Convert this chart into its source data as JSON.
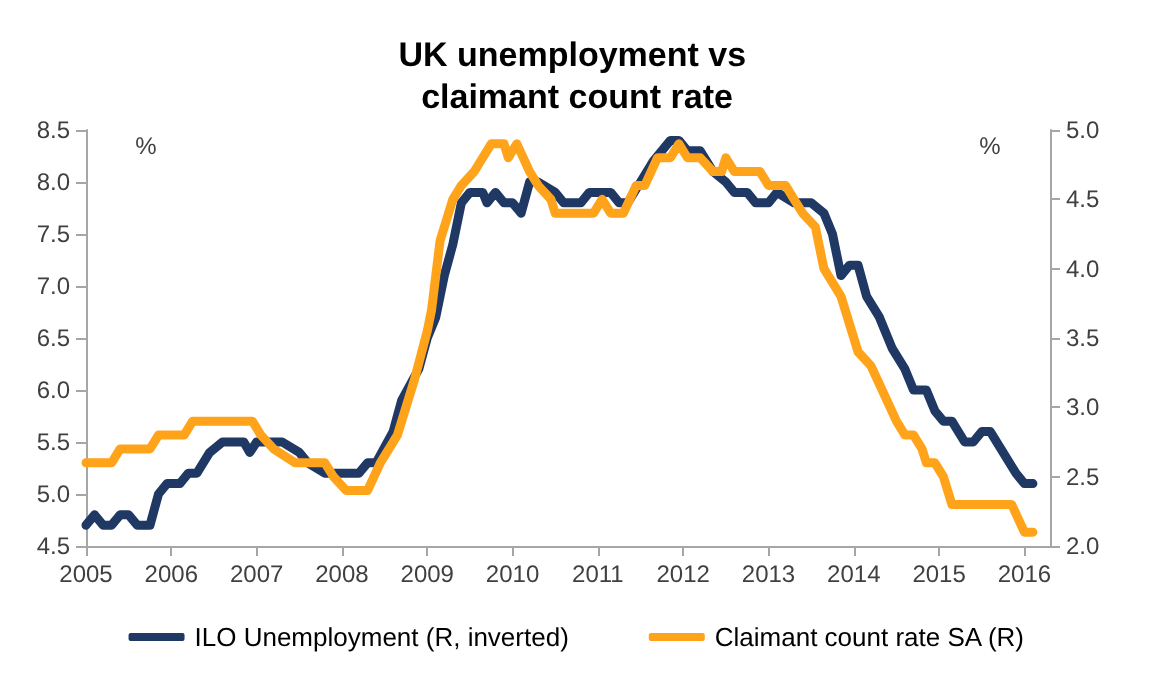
{
  "chart_data": {
    "type": "line",
    "title": "UK unemployment vs claimant count rate",
    "ylabel": "%",
    "y2label": "%",
    "xlim": [
      2005,
      2016.3
    ],
    "xticks": [
      2005,
      2006,
      2007,
      2008,
      2009,
      2010,
      2011,
      2012,
      2013,
      2014,
      2015,
      2016
    ],
    "ylim": [
      4.5,
      8.5
    ],
    "yticks": [
      4.5,
      {
        "value": 5,
        "label": "5.0"
      },
      5.5,
      {
        "value": 6,
        "label": "6.0"
      },
      6.5,
      {
        "value": 7,
        "label": "7.0"
      },
      7.5,
      {
        "value": 8,
        "label": "8.0"
      },
      8.5
    ],
    "y2lim": [
      2.0,
      5.0
    ],
    "y2ticks": [
      {
        "value": 2,
        "label": "2.0"
      },
      2.5,
      {
        "value": 3,
        "label": "3.0"
      },
      3.5,
      {
        "value": 4,
        "label": "4.0"
      },
      4.5,
      {
        "value": 5,
        "label": "5.0"
      }
    ],
    "grid": false,
    "legend": "bottom",
    "marker": "none",
    "line_style": "solid",
    "series": [
      {
        "name": "ILO Unemployment (R, inverted)",
        "color": "#1f3864",
        "x": [
          2005.0,
          2005.1,
          2005.2,
          2005.3,
          2005.4,
          2005.5,
          2005.6,
          2005.75,
          2005.85,
          2005.95,
          2006.1,
          2006.2,
          2006.3,
          2006.45,
          2006.6,
          2006.85,
          2006.92,
          2007.0,
          2007.3,
          2007.5,
          2007.6,
          2007.8,
          2008.2,
          2008.3,
          2008.4,
          2008.6,
          2008.7,
          2008.9,
          2009.0,
          2009.1,
          2009.2,
          2009.3,
          2009.4,
          2009.5,
          2009.65,
          2009.7,
          2009.8,
          2009.9,
          2010.0,
          2010.1,
          2010.2,
          2010.3,
          2010.5,
          2010.6,
          2010.8,
          2010.9,
          2011.0,
          2011.15,
          2011.25,
          2011.35,
          2011.5,
          2011.65,
          2011.85,
          2011.95,
          2012.05,
          2012.2,
          2012.35,
          2012.5,
          2012.6,
          2012.75,
          2012.85,
          2013.0,
          2013.1,
          2013.3,
          2013.5,
          2013.65,
          2013.75,
          2013.85,
          2013.95,
          2014.05,
          2014.15,
          2014.3,
          2014.45,
          2014.6,
          2014.7,
          2014.85,
          2014.95,
          2015.05,
          2015.15,
          2015.3,
          2015.4,
          2015.5,
          2015.6,
          2015.75,
          2015.9,
          2016.0,
          2016.1
        ],
        "values": [
          4.7,
          4.8,
          4.7,
          4.7,
          4.8,
          4.8,
          4.7,
          4.7,
          5.0,
          5.1,
          5.1,
          5.2,
          5.2,
          5.4,
          5.5,
          5.5,
          5.4,
          5.5,
          5.5,
          5.4,
          5.3,
          5.2,
          5.2,
          5.3,
          5.3,
          5.6,
          5.9,
          6.2,
          6.5,
          6.7,
          7.1,
          7.4,
          7.8,
          7.9,
          7.9,
          7.8,
          7.9,
          7.8,
          7.8,
          7.7,
          8.0,
          8.0,
          7.9,
          7.8,
          7.8,
          7.9,
          7.9,
          7.9,
          7.8,
          7.8,
          8.0,
          8.2,
          8.4,
          8.4,
          8.3,
          8.3,
          8.1,
          8.0,
          7.9,
          7.9,
          7.8,
          7.8,
          7.9,
          7.8,
          7.8,
          7.7,
          7.5,
          7.1,
          7.2,
          7.2,
          6.9,
          6.7,
          6.4,
          6.2,
          6.0,
          6.0,
          5.8,
          5.7,
          5.7,
          5.5,
          5.5,
          5.6,
          5.6,
          5.4,
          5.2,
          5.1,
          5.1
        ]
      },
      {
        "name": "Claimant count rate SA (R)",
        "color": "#ffa31a",
        "axis": "y2",
        "x": [
          2005.0,
          2005.3,
          2005.4,
          2005.75,
          2005.85,
          2006.15,
          2006.25,
          2006.95,
          2007.05,
          2007.2,
          2007.45,
          2007.8,
          2007.9,
          2008.05,
          2008.3,
          2008.45,
          2008.65,
          2008.85,
          2009.0,
          2009.05,
          2009.15,
          2009.3,
          2009.4,
          2009.55,
          2009.65,
          2009.75,
          2009.9,
          2009.95,
          2010.05,
          2010.2,
          2010.3,
          2010.45,
          2010.5,
          2010.95,
          2011.05,
          2011.15,
          2011.3,
          2011.45,
          2011.55,
          2011.7,
          2011.85,
          2011.95,
          2012.05,
          2012.2,
          2012.35,
          2012.45,
          2012.5,
          2012.6,
          2012.9,
          2013.0,
          2013.2,
          2013.3,
          2013.4,
          2013.55,
          2013.65,
          2013.85,
          2013.95,
          2014.05,
          2014.2,
          2014.35,
          2014.5,
          2014.6,
          2014.7,
          2014.8,
          2014.85,
          2014.95,
          2015.05,
          2015.15,
          2015.85,
          2016.0,
          2016.1
        ],
        "values": [
          2.6,
          2.6,
          2.7,
          2.7,
          2.8,
          2.8,
          2.9,
          2.9,
          2.8,
          2.7,
          2.6,
          2.6,
          2.5,
          2.4,
          2.4,
          2.6,
          2.8,
          3.2,
          3.55,
          3.7,
          4.2,
          4.5,
          4.6,
          4.7,
          4.8,
          4.9,
          4.9,
          4.8,
          4.9,
          4.7,
          4.6,
          4.5,
          4.4,
          4.4,
          4.5,
          4.4,
          4.4,
          4.6,
          4.6,
          4.8,
          4.8,
          4.9,
          4.8,
          4.8,
          4.7,
          4.7,
          4.8,
          4.7,
          4.7,
          4.6,
          4.6,
          4.5,
          4.4,
          4.3,
          4.0,
          3.8,
          3.6,
          3.4,
          3.3,
          3.1,
          2.9,
          2.8,
          2.8,
          2.7,
          2.6,
          2.6,
          2.5,
          2.3,
          2.3,
          2.1,
          2.1
        ]
      }
    ]
  }
}
